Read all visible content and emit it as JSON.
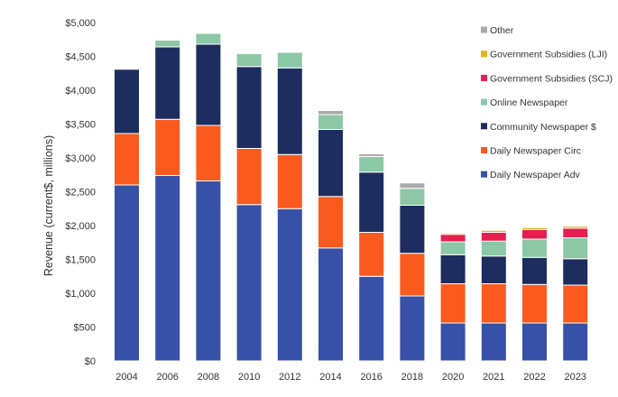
{
  "chart_data": {
    "type": "bar",
    "stacked": true,
    "ylabel": "Revenue (current$, millions)",
    "ylim": [
      0,
      5000
    ],
    "yticks": [
      0,
      500,
      1000,
      1500,
      2000,
      2500,
      3000,
      3500,
      4000,
      4500,
      5000
    ],
    "ytick_labels": [
      "$0",
      "$500",
      "$1,000",
      "$1,500",
      "$2,000",
      "$2,500",
      "$3,000",
      "$3,500",
      "$4,000",
      "$4,500",
      "$5,000"
    ],
    "categories": [
      "2004",
      "2006",
      "2008",
      "2010",
      "2012",
      "2014",
      "2016",
      "2018",
      "2020",
      "2021",
      "2022",
      "2023"
    ],
    "grid": false,
    "legend_position": "top-right",
    "series": [
      {
        "name": "Daily Newspaper Adv",
        "color": "#3750a8",
        "values": [
          2600,
          2740,
          2660,
          2310,
          2250,
          1670,
          1250,
          960,
          560,
          560,
          560,
          560
        ]
      },
      {
        "name": "Daily Newspaper Circ",
        "color": "#fa5a1e",
        "values": [
          760,
          830,
          820,
          830,
          800,
          760,
          650,
          630,
          580,
          580,
          570,
          560
        ]
      },
      {
        "name": "Community Newspaper $",
        "color": "#1e2d5f",
        "values": [
          950,
          1070,
          1200,
          1210,
          1280,
          990,
          890,
          710,
          430,
          410,
          400,
          390
        ]
      },
      {
        "name": "Online Newspaper",
        "color": "#8cc8a5",
        "values": [
          0,
          100,
          160,
          190,
          230,
          220,
          230,
          250,
          190,
          220,
          270,
          310
        ]
      },
      {
        "name": "Government Subsidies (SCJ)",
        "color": "#e61e50",
        "values": [
          0,
          0,
          0,
          0,
          0,
          0,
          0,
          0,
          110,
          130,
          140,
          140
        ]
      },
      {
        "name": "Government Subsidies (LJI)",
        "color": "#e6b414",
        "values": [
          0,
          0,
          0,
          0,
          0,
          0,
          0,
          0,
          20,
          30,
          30,
          30
        ]
      },
      {
        "name": "Other",
        "color": "#aaaaaa",
        "values": [
          0,
          0,
          0,
          0,
          0,
          60,
          40,
          80,
          0,
          0,
          0,
          0
        ]
      }
    ],
    "legend_order": [
      "Other",
      "Government Subsidies (LJI)",
      "Government Subsidies (SCJ)",
      "Online Newspaper",
      "Community Newspaper $",
      "Daily Newspaper Circ",
      "Daily Newspaper Adv"
    ]
  }
}
